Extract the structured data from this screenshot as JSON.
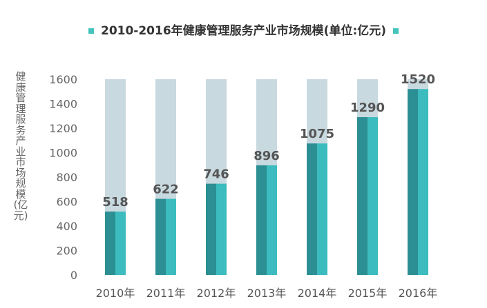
{
  "colors": {
    "background_bar": "#c9d9e0",
    "bar_dark": "#2b8f93",
    "bar_light": "#3cbcbe",
    "legend": "#45c4bd"
  },
  "chart_data": {
    "type": "bar",
    "title": "2010-2016年健康管理服务产业市场规模(单位:亿元)",
    "xlabel": "",
    "ylabel": "健康管理服务产业市场规模 (亿元)",
    "categories": [
      "2010年",
      "2011年",
      "2012年",
      "2013年",
      "2014年",
      "2015年",
      "2016年"
    ],
    "values": [
      518,
      622,
      746,
      896,
      1075,
      1290,
      1520
    ],
    "data_labels": [
      "518",
      "622",
      "746",
      "896",
      "1075",
      "1290",
      "1520"
    ],
    "background_max": 1600,
    "ylim": [
      0,
      1600
    ],
    "yticks": [
      0,
      200,
      400,
      600,
      800,
      1000,
      1200,
      1400,
      1600
    ],
    "grid": false,
    "legend": "top"
  }
}
